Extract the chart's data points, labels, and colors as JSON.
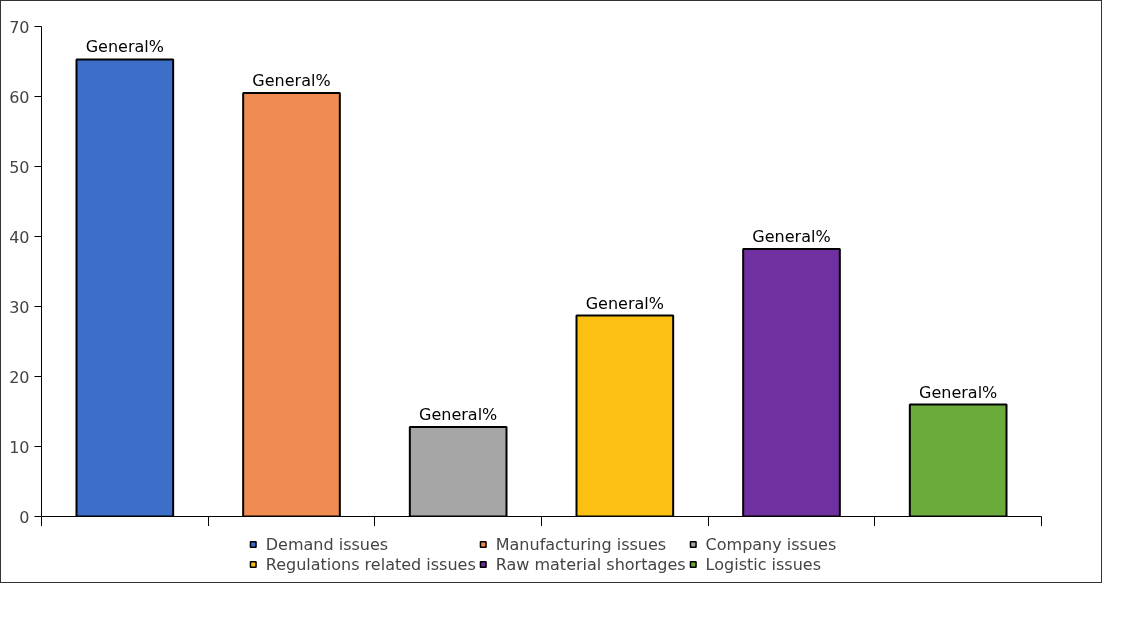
{
  "chart_data": {
    "type": "bar",
    "categories": [
      null,
      null,
      null,
      null,
      null,
      null
    ],
    "series": [
      {
        "name": "Demand issues",
        "color": "#3d6fc8",
        "values": [
          65.3,
          null,
          null,
          null,
          null,
          null
        ],
        "value_labels": [
          "General%",
          null,
          null,
          null,
          null,
          null
        ]
      },
      {
        "name": "Manufacturing issues",
        "color": "#f08b51",
        "values": [
          null,
          60.5,
          null,
          null,
          null,
          null
        ],
        "value_labels": [
          null,
          "General%",
          null,
          null,
          null,
          null
        ]
      },
      {
        "name": "Company issues",
        "color": "#a6a6a6",
        "values": [
          null,
          null,
          12.8,
          null,
          null,
          null
        ],
        "value_labels": [
          null,
          null,
          "General%",
          null,
          null,
          null
        ]
      },
      {
        "name": "Regulations related issues",
        "color": "#fcc013",
        "values": [
          null,
          null,
          null,
          28.7,
          null,
          null
        ],
        "value_labels": [
          null,
          null,
          null,
          "General%",
          null,
          null
        ]
      },
      {
        "name": "Raw material shortages",
        "color": "#70309f",
        "values": [
          null,
          null,
          null,
          null,
          38.2,
          null
        ],
        "value_labels": [
          null,
          null,
          null,
          null,
          "General%",
          null
        ]
      },
      {
        "name": "Logistic issues",
        "color": "#6aab3c",
        "values": [
          null,
          null,
          null,
          null,
          null,
          16.0
        ],
        "value_labels": [
          null,
          null,
          null,
          null,
          null,
          "General%"
        ]
      }
    ],
    "ylim": [
      0,
      70
    ],
    "yticks": [
      0,
      10,
      20,
      30,
      40,
      50,
      60,
      70
    ],
    "grid": false,
    "legend": "bottom",
    "tick_labels": "y"
  }
}
